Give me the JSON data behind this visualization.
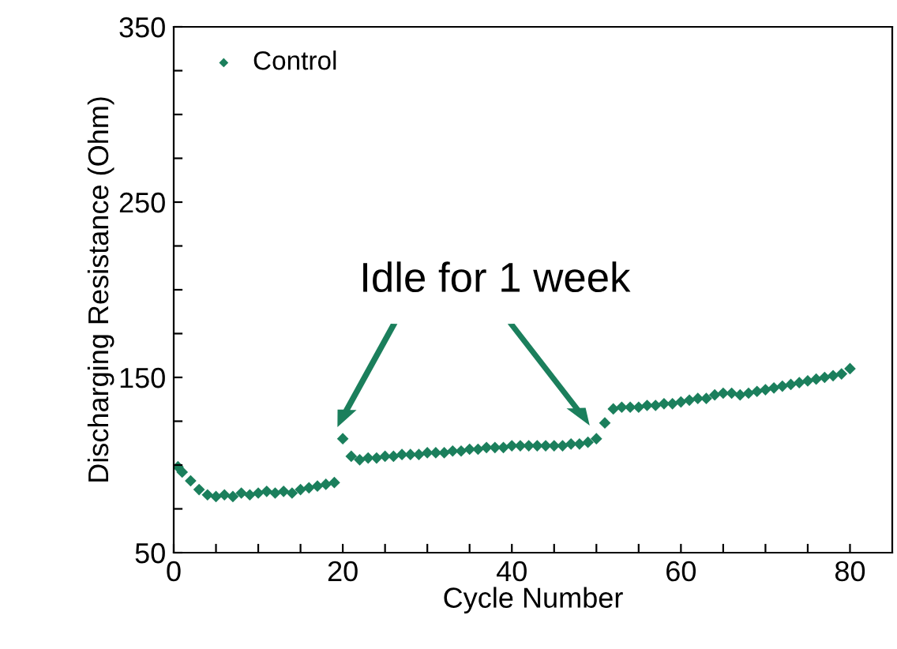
{
  "chart_data": {
    "type": "scatter",
    "xlabel": "Cycle Number",
    "ylabel": "Discharging Resistance (Ohm)",
    "x": [
      0.5,
      1,
      2,
      3,
      4,
      5,
      6,
      7,
      8,
      9,
      10,
      11,
      12,
      13,
      14,
      15,
      16,
      17,
      18,
      19,
      20,
      21,
      22,
      23,
      24,
      25,
      26,
      27,
      28,
      29,
      30,
      31,
      32,
      33,
      34,
      35,
      36,
      37,
      38,
      39,
      40,
      41,
      42,
      43,
      44,
      45,
      46,
      47,
      48,
      49,
      50,
      51,
      52,
      53,
      54,
      55,
      56,
      57,
      58,
      59,
      60,
      61,
      62,
      63,
      64,
      65,
      66,
      67,
      68,
      69,
      70,
      71,
      72,
      73,
      74,
      75,
      76,
      77,
      78,
      79,
      80
    ],
    "series": [
      {
        "name": "Control",
        "color": "#1b7f5c",
        "values": [
          99,
          96,
          91,
          86,
          83,
          82,
          83,
          82,
          84,
          83,
          84,
          85,
          84,
          85,
          84,
          86,
          87,
          88,
          89,
          90,
          115,
          105,
          103,
          104,
          104,
          105,
          105,
          106,
          106,
          106,
          107,
          107,
          107,
          108,
          108,
          109,
          109,
          110,
          110,
          110,
          111,
          111,
          111,
          111,
          111,
          111,
          111,
          112,
          112,
          113,
          115,
          124,
          132,
          133,
          133,
          133,
          134,
          134,
          135,
          135,
          136,
          137,
          138,
          138,
          140,
          141,
          141,
          140,
          141,
          142,
          143,
          144,
          145,
          146,
          147,
          148,
          149,
          150,
          151,
          152,
          155
        ]
      }
    ],
    "xlim": [
      0,
      85
    ],
    "ylim": [
      50,
      350
    ],
    "xticks": [
      0,
      {
        "value": 5,
        "label": null
      },
      {
        "value": 10,
        "label": null
      },
      {
        "value": 15,
        "label": null
      },
      20,
      {
        "value": 25,
        "label": null
      },
      {
        "value": 30,
        "label": null
      },
      {
        "value": 35,
        "label": null
      },
      40,
      {
        "value": 45,
        "label": null
      },
      {
        "value": 50,
        "label": null
      },
      {
        "value": 55,
        "label": null
      },
      60,
      {
        "value": 65,
        "label": null
      },
      {
        "value": 70,
        "label": null
      },
      {
        "value": 75,
        "label": null
      },
      80
    ],
    "yticks": [
      50,
      {
        "value": 75,
        "label": null
      },
      {
        "value": 100,
        "label": null
      },
      {
        "value": 125,
        "label": null
      },
      150,
      {
        "value": 175,
        "label": null
      },
      {
        "value": 200,
        "label": null
      },
      {
        "value": 225,
        "label": null
      },
      250,
      {
        "value": 275,
        "label": null
      },
      {
        "value": 300,
        "label": null
      },
      {
        "value": 325,
        "label": null
      },
      350
    ],
    "marker": "diamond",
    "legend": "top left",
    "grid": false,
    "annotations": [
      "Idle for 1 week"
    ]
  }
}
